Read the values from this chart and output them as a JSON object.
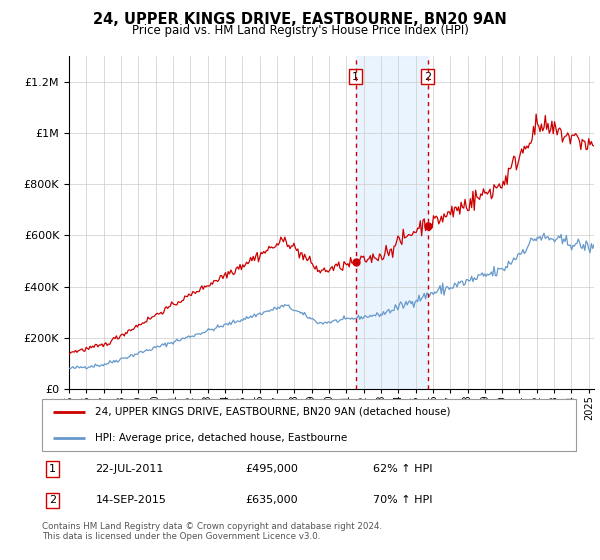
{
  "title": "24, UPPER KINGS DRIVE, EASTBOURNE, BN20 9AN",
  "subtitle": "Price paid vs. HM Land Registry's House Price Index (HPI)",
  "red_label": "24, UPPER KINGS DRIVE, EASTBOURNE, BN20 9AN (detached house)",
  "blue_label": "HPI: Average price, detached house, Eastbourne",
  "transaction1_date": "22-JUL-2011",
  "transaction1_price": 495000,
  "transaction1_note": "62% ↑ HPI",
  "transaction2_date": "14-SEP-2015",
  "transaction2_price": 635000,
  "transaction2_note": "70% ↑ HPI",
  "footnote": "Contains HM Land Registry data © Crown copyright and database right 2024.\nThis data is licensed under the Open Government Licence v3.0.",
  "red_color": "#cc0000",
  "blue_color": "#6699cc",
  "shade_color": "#ddeeff",
  "vline_color": "#cc0000",
  "t1": 2011.55,
  "t2": 2015.71,
  "p1": 495000,
  "p2": 635000,
  "ylim": [
    0,
    1300000
  ],
  "xlim_min": 1995,
  "xlim_max": 2025.3
}
